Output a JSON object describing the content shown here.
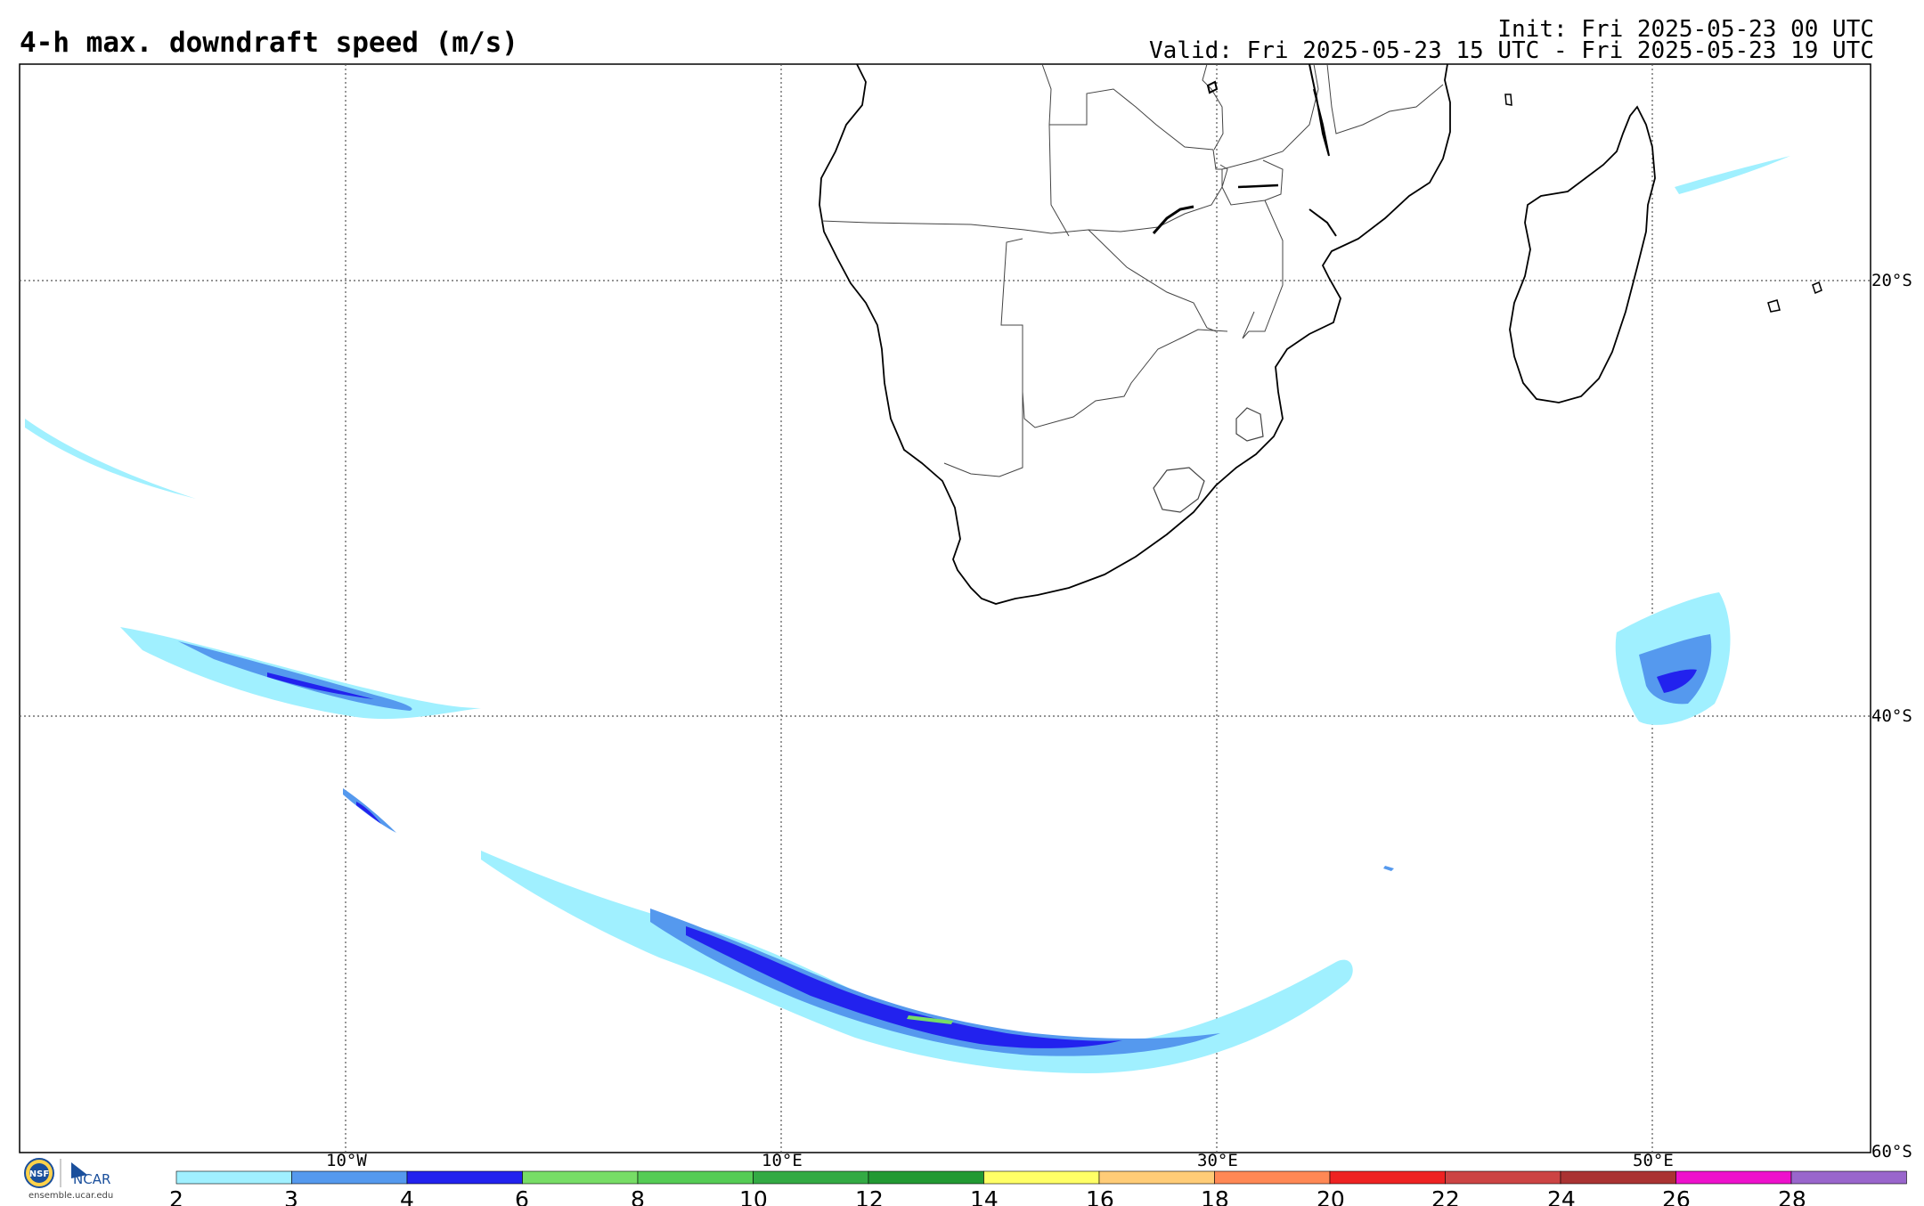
{
  "header": {
    "title": "4-h max. downdraft speed (m/s)",
    "init": "Init: Fri 2025-05-23 00 UTC",
    "valid": "Valid: Fri 2025-05-23 15 UTC - Fri 2025-05-23 19 UTC"
  },
  "map": {
    "lat_labels": [
      "20°S",
      "40°S",
      "60°S"
    ],
    "lon_labels": [
      "10°W",
      "10°E",
      "30°E",
      "50°E"
    ]
  },
  "legend": {
    "ticks": [
      "2",
      "3",
      "4",
      "6",
      "8",
      "10",
      "12",
      "14",
      "16",
      "18",
      "20",
      "22",
      "24",
      "26",
      "28"
    ],
    "colors": [
      "#a0f0ff",
      "#5599ee",
      "#2222ee",
      "#77dd66",
      "#55cc55",
      "#33aa44",
      "#229933",
      "#ffff66",
      "#ffcc77",
      "#ff8855",
      "#ee2222",
      "#cc4444",
      "#aa3333",
      "#ee11cc",
      "#9966cc"
    ]
  },
  "logos": {
    "nsf": "NSF",
    "ncar": "NCAR",
    "site": "ensemble.ucar.edu"
  }
}
